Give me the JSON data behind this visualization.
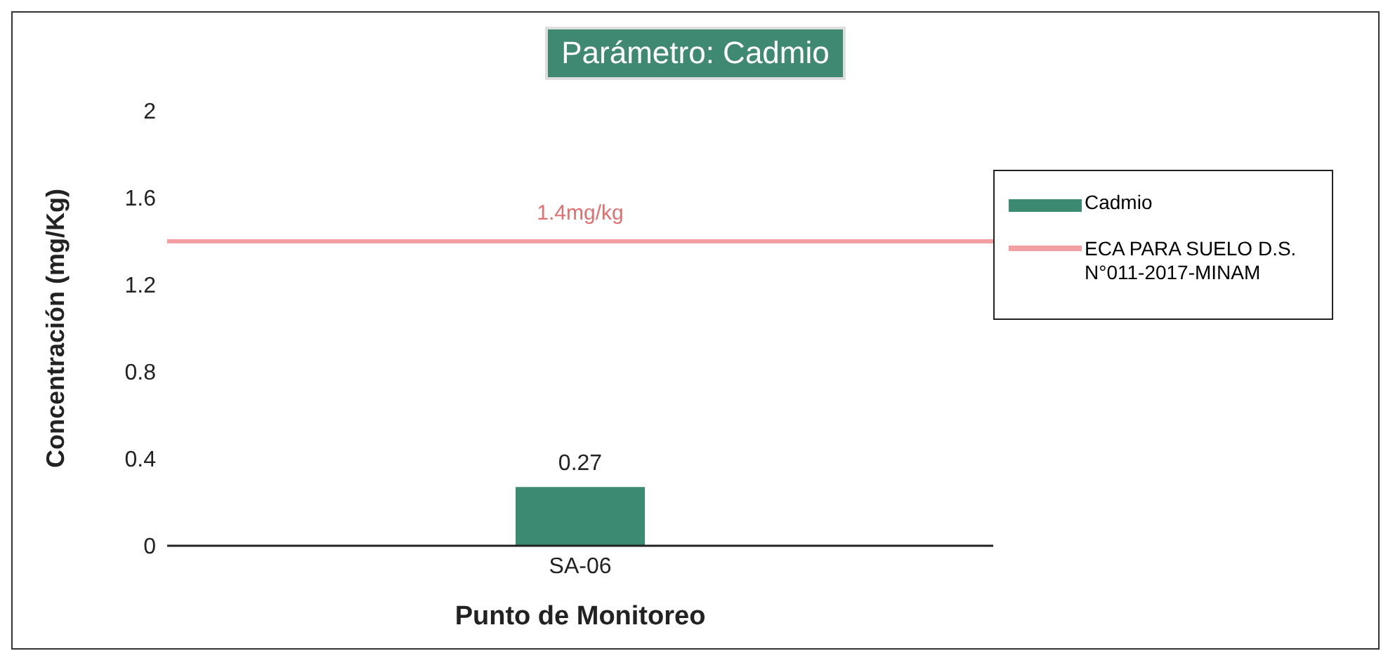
{
  "chart_data": {
    "type": "bar",
    "title": "Parámetro: Cadmio",
    "xlabel": "Punto de Monitoreo",
    "ylabel": "Concentración (mg/Kg)",
    "categories": [
      "SA-06"
    ],
    "series": [
      {
        "name": "Cadmio",
        "color": "#3d8a72",
        "values": [
          0.27
        ],
        "value_labels": [
          "0.27"
        ]
      }
    ],
    "ref_lines": [
      {
        "axis": "y",
        "value": 1.4,
        "label": "ECA PARA SUELO D.S. N°011-2017-MINAM",
        "color": "#f2a0a4"
      }
    ],
    "annotations": [
      {
        "text": "1.4mg/kg",
        "y": 1.4
      }
    ],
    "ylim": [
      0,
      2
    ],
    "yticks": [
      0,
      0.4,
      0.8,
      1.2,
      1.6,
      2
    ],
    "grid": false,
    "legend": "right"
  }
}
